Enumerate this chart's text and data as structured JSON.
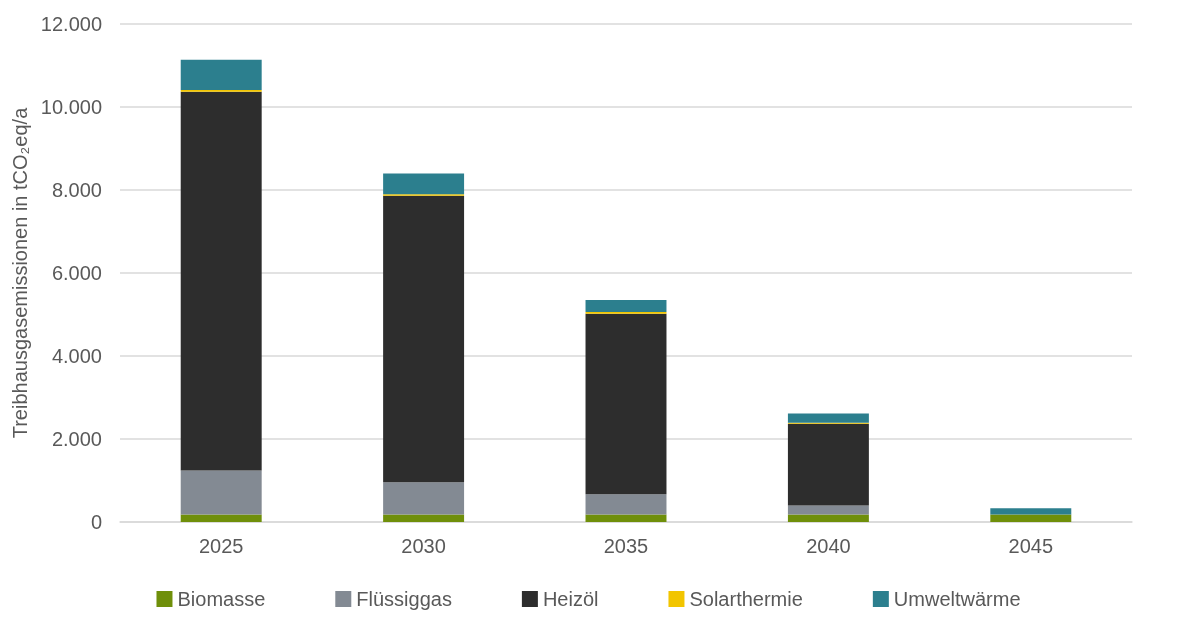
{
  "chart_data": {
    "type": "bar",
    "stacked": true,
    "ylabel": "Treibhausgasemissionen in tCO₂eq/a",
    "categories": [
      "2025",
      "2030",
      "2035",
      "2040",
      "2045"
    ],
    "series": [
      {
        "name": "Biomasse",
        "color": "#6f8f0a",
        "values": [
          180,
          180,
          180,
          180,
          180
        ]
      },
      {
        "name": "Flüssiggas",
        "color": "#838a93",
        "values": [
          1060,
          780,
          490,
          220,
          0
        ]
      },
      {
        "name": "Heizöl",
        "color": "#2d2d2d",
        "values": [
          9130,
          6900,
          4350,
          1970,
          0
        ]
      },
      {
        "name": "Solarthermie",
        "color": "#f2c500",
        "values": [
          40,
          40,
          40,
          20,
          0
        ]
      },
      {
        "name": "Umweltwärme",
        "color": "#2c7f8e",
        "values": [
          730,
          500,
          290,
          225,
          150
        ]
      }
    ],
    "ylim": [
      0,
      12000
    ],
    "yticks": [
      0,
      {
        "value": 2000,
        "label": "2.000"
      },
      {
        "value": 4000,
        "label": "4.000"
      },
      {
        "value": 6000,
        "label": "6.000"
      },
      {
        "value": 8000,
        "label": "8.000"
      },
      {
        "value": 10000,
        "label": "10.000"
      },
      {
        "value": 12000,
        "label": "12.000"
      }
    ],
    "grid": "y",
    "legend": "bottom"
  }
}
